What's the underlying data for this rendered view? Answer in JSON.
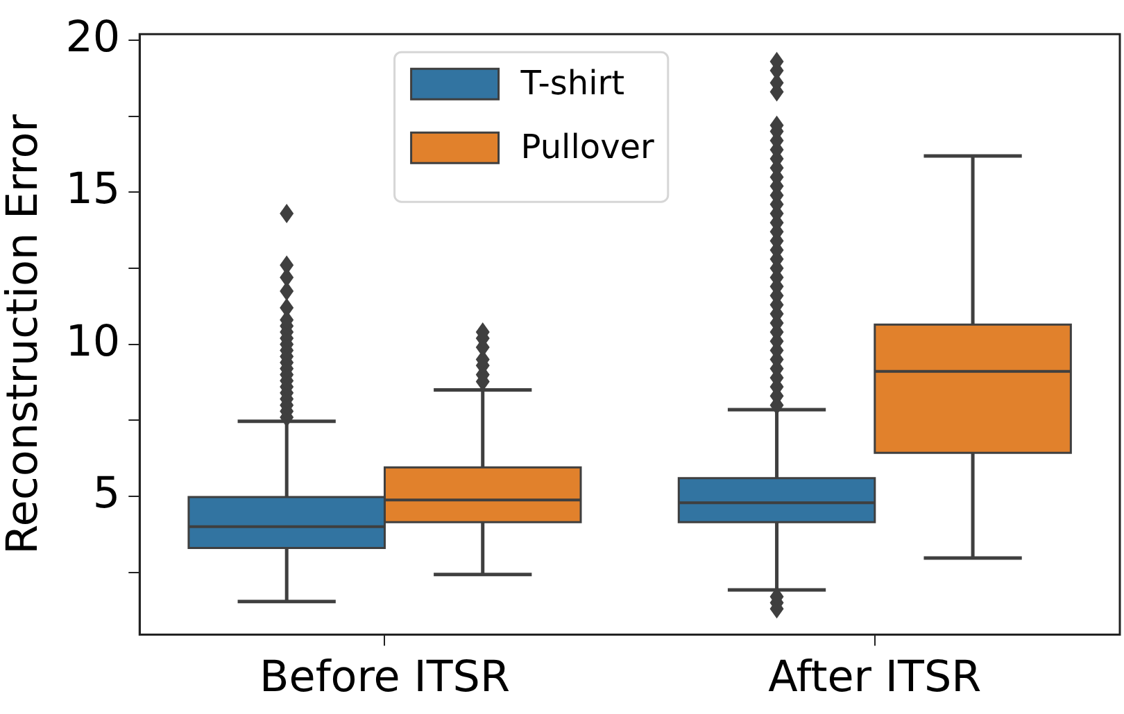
{
  "chart_data": {
    "type": "box",
    "categories": [
      "Before ITSR",
      "After ITSR"
    ],
    "ylabel": "Reconstruction Error",
    "ylim": [
      0.45,
      20.2
    ],
    "yticks": [
      {
        "value": 2.5,
        "label": null
      },
      5,
      {
        "value": 7.5,
        "label": null
      },
      10,
      {
        "value": 12.5,
        "label": null
      },
      15,
      {
        "value": 17.5,
        "label": null
      },
      20
    ],
    "grid": false,
    "legend": "top",
    "series": [
      {
        "name": "T-shirt",
        "color": "#3274a1",
        "boxes": [
          {
            "low": 1.54,
            "q1": 3.3,
            "median": 4.0,
            "q3": 4.98,
            "high": 7.47,
            "outliers": [
              7.6,
              7.8,
              8.0,
              8.2,
              8.4,
              8.6,
              8.8,
              9.0,
              9.2,
              9.4,
              9.6,
              9.8,
              10.0,
              10.2,
              10.4,
              10.6,
              10.8,
              11.2,
              11.75,
              12.2,
              12.6,
              14.3
            ]
          },
          {
            "low": 1.92,
            "q1": 4.15,
            "median": 4.79,
            "q3": 5.6,
            "high": 7.85,
            "outliers": [
              1.3,
              1.5,
              1.7,
              8.0,
              8.3,
              8.6,
              8.9,
              9.2,
              9.5,
              9.8,
              10.1,
              10.4,
              10.7,
              11.0,
              11.3,
              11.6,
              11.9,
              12.2,
              12.5,
              12.8,
              13.1,
              13.4,
              13.7,
              14.0,
              14.3,
              14.6,
              14.9,
              15.2,
              15.5,
              15.8,
              16.1,
              16.4,
              16.7,
              17.0,
              17.2,
              18.3,
              18.6,
              19.0,
              19.3
            ]
          }
        ]
      },
      {
        "name": "Pullover",
        "color": "#e1812c",
        "boxes": [
          {
            "low": 2.43,
            "q1": 4.15,
            "median": 4.88,
            "q3": 5.95,
            "high": 8.5,
            "outliers": [
              8.77,
              9.0,
              9.3,
              9.5,
              9.9,
              10.2,
              10.4
            ]
          },
          {
            "low": 2.97,
            "q1": 6.43,
            "median": 9.11,
            "q3": 10.65,
            "high": 16.19
          }
        ]
      }
    ]
  }
}
